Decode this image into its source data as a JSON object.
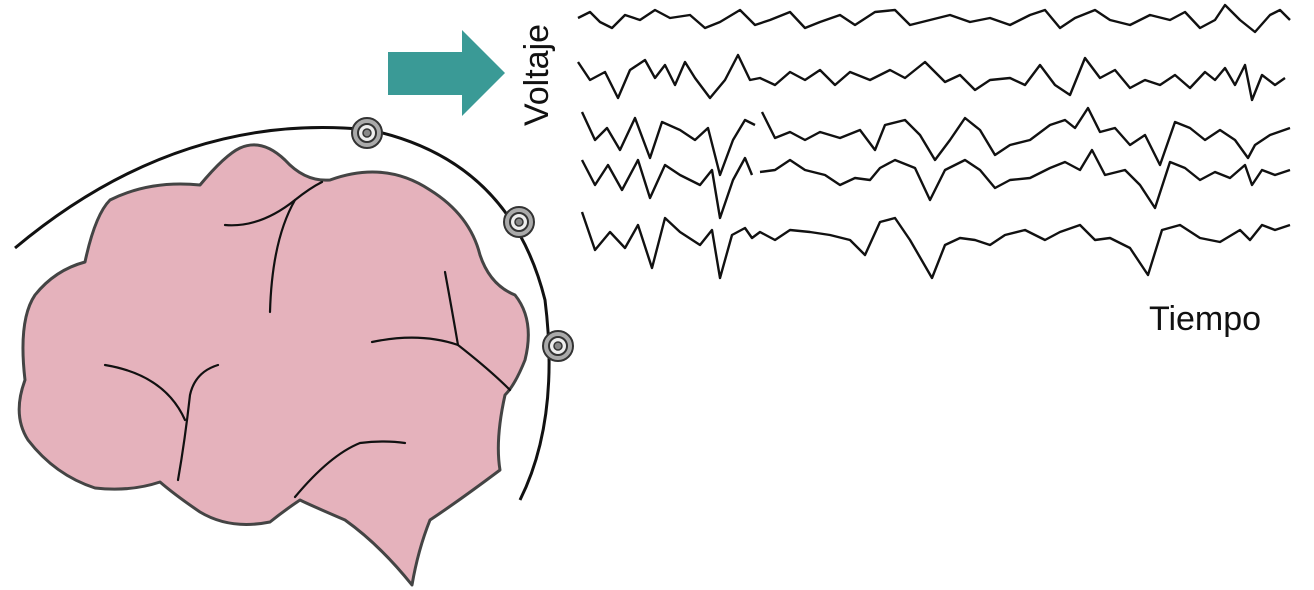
{
  "labels": {
    "y_axis": "Voltaje",
    "x_axis": "Tiempo"
  }
}
